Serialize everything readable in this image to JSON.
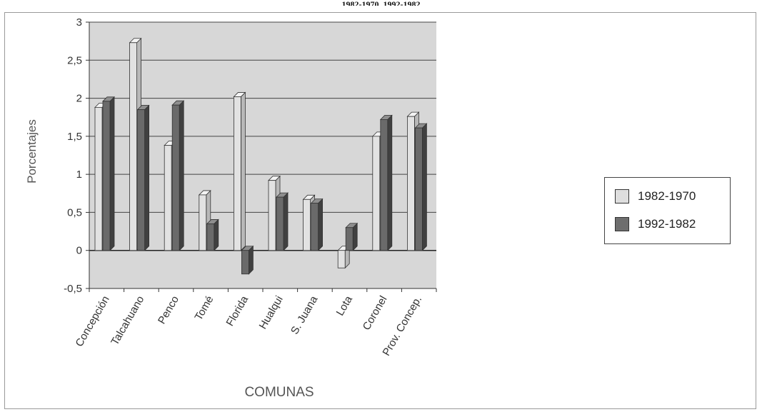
{
  "page": {
    "title": "1982-1970, 1992-1982"
  },
  "chart_data": {
    "type": "bar",
    "title": "1982-1970, 1992-1982",
    "xlabel": "COMUNAS",
    "ylabel": "Porcentajes",
    "ylim": [
      -0.5,
      3
    ],
    "yticks": [
      "3",
      "2,5",
      "2",
      "1,5",
      "1",
      "0,5",
      "0",
      "-0,5"
    ],
    "ytick_values": [
      3,
      2.5,
      2,
      1.5,
      1,
      0.5,
      0,
      -0.5
    ],
    "grid": true,
    "legend_position": "right",
    "categories": [
      "Concepción",
      "Talcahuano",
      "Penco",
      "Tomé",
      "Florida",
      "Hualqui",
      "S. Juana",
      "Lota",
      "Coronel",
      "Prov. Concep."
    ],
    "series": [
      {
        "name": "1982-1970",
        "color": "#dedede",
        "values": [
          1.88,
          2.73,
          1.38,
          0.73,
          2.02,
          0.92,
          0.67,
          -0.23,
          1.5,
          1.76
        ]
      },
      {
        "name": "1992-1982",
        "color": "#6e6e6e",
        "values": [
          1.96,
          1.85,
          1.91,
          0.35,
          -0.31,
          0.7,
          0.62,
          0.3,
          1.72,
          1.61
        ]
      }
    ]
  },
  "legend": {
    "items": [
      {
        "label": "1982-1970",
        "color": "#dedede"
      },
      {
        "label": "1992-1982",
        "color": "#6e6e6e"
      }
    ]
  }
}
